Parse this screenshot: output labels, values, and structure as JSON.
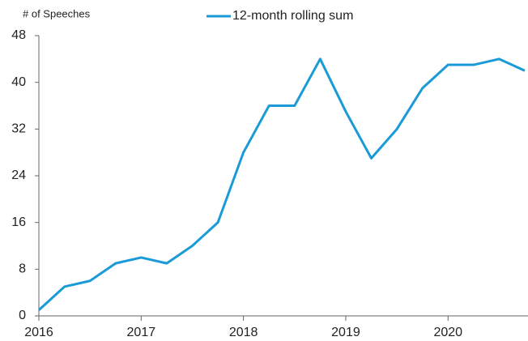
{
  "chart_data": {
    "type": "line",
    "y_label": "# of Speeches",
    "x": [
      2016,
      2016.25,
      2016.5,
      2016.75,
      2017,
      2017.25,
      2017.5,
      2017.75,
      2018,
      2018.25,
      2018.5,
      2018.75,
      2019,
      2019.25,
      2019.5,
      2019.75,
      2020,
      2020.25,
      2020.5,
      2020.75
    ],
    "series": [
      {
        "name": "12-month rolling sum",
        "color": "#1a9bd7",
        "values": [
          1,
          5,
          6,
          9,
          10,
          9,
          12,
          16,
          28,
          36,
          36,
          44,
          35,
          27,
          32,
          39,
          43,
          43,
          44,
          42
        ]
      }
    ],
    "xlim": [
      2016,
      2020.75
    ],
    "xticks": [
      2016,
      2017,
      2018,
      2019,
      2020
    ],
    "ylim": [
      0,
      48
    ],
    "yticks": [
      0,
      8,
      16,
      24,
      32,
      40,
      48
    ],
    "legend": "top"
  }
}
